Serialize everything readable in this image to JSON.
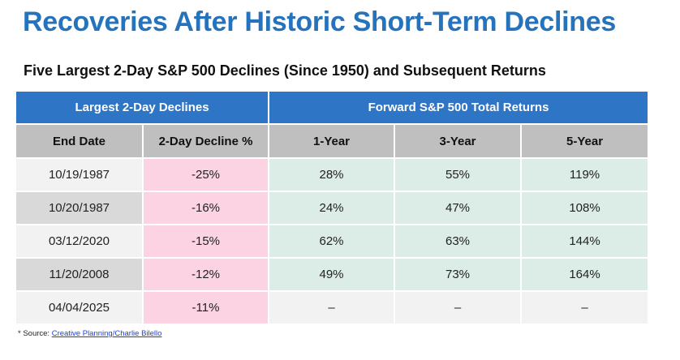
{
  "title": "Recoveries After Historic Short-Term Declines",
  "subtitle": "Five Largest 2-Day S&P 500 Declines (Since 1950) and Subsequent Returns",
  "table": {
    "group_headers": [
      "Largest 2-Day Declines",
      "Forward S&P 500 Total Returns"
    ],
    "columns": [
      "End Date",
      "2-Day Decline %",
      "1-Year",
      "3-Year",
      "5-Year"
    ],
    "rows": [
      [
        "10/19/1987",
        "-25%",
        "28%",
        "55%",
        "119%"
      ],
      [
        "10/20/1987",
        "-16%",
        "24%",
        "47%",
        "108%"
      ],
      [
        "03/12/2020",
        "-15%",
        "62%",
        "63%",
        "144%"
      ],
      [
        "11/20/2008",
        "-12%",
        "49%",
        "73%",
        "164%"
      ],
      [
        "04/04/2025",
        "-11%",
        "–",
        "–",
        "–"
      ]
    ]
  },
  "footnote": {
    "prefix": "* Source: ",
    "link_text": "Creative Planning/Charlie Bilello"
  },
  "colors": {
    "title": "#2673bd",
    "header_blue": "#2e75c6",
    "column_header_gray": "#bfbfbf",
    "decline_pink": "#fbd3e3",
    "returns_green": "#dcece7"
  },
  "chart_data": {
    "type": "table",
    "title": "Recoveries After Historic Short-Term Declines",
    "subtitle": "Five Largest 2-Day S&P 500 Declines (Since 1950) and Subsequent Returns",
    "columns": [
      "End Date",
      "2-Day Decline %",
      "1-Year",
      "3-Year",
      "5-Year"
    ],
    "rows": [
      [
        "10/19/1987",
        -25,
        28,
        55,
        119
      ],
      [
        "10/20/1987",
        -16,
        24,
        47,
        108
      ],
      [
        "03/12/2020",
        -15,
        62,
        63,
        144
      ],
      [
        "11/20/2008",
        -12,
        49,
        73,
        164
      ],
      [
        "04/04/2025",
        -11,
        null,
        null,
        null
      ]
    ]
  }
}
